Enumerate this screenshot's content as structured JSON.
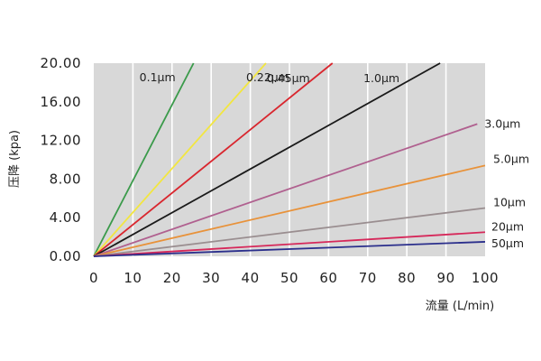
{
  "chart_data": {
    "type": "line",
    "title": "",
    "xlabel": "流量 (L/min)",
    "ylabel": "压降 (kpa)",
    "xlim": [
      0,
      100
    ],
    "ylim": [
      0,
      20
    ],
    "x_ticks": [
      "0",
      "10",
      "20",
      "30",
      "40",
      "50",
      "60",
      "70",
      "80",
      "90",
      "100"
    ],
    "y_ticks": [
      "0.00",
      "4.00",
      "8.00",
      "12.00",
      "16.00",
      "20.00"
    ],
    "grid": "vertical",
    "background": "#d8d8d8",
    "series": [
      {
        "name": "0.1μm",
        "color": "#3a9a4a",
        "x": [
          0,
          25.5
        ],
        "y": [
          0,
          20.0
        ]
      },
      {
        "name": "0.22μm",
        "color": "#f2e640",
        "x": [
          0,
          44.0
        ],
        "y": [
          0,
          20.0
        ]
      },
      {
        "name": "0.45μm",
        "color": "#d9262e",
        "x": [
          0,
          61.0
        ],
        "y": [
          0,
          20.0
        ]
      },
      {
        "name": "1.0μm",
        "color": "#1a1a1a",
        "x": [
          0,
          88.5
        ],
        "y": [
          0,
          20.0
        ]
      },
      {
        "name": "3.0μm",
        "color": "#b0608f",
        "x": [
          0,
          98.0
        ],
        "y": [
          0,
          13.7
        ]
      },
      {
        "name": "5.0μm",
        "color": "#e8923a",
        "x": [
          0,
          100.0
        ],
        "y": [
          0,
          9.4
        ]
      },
      {
        "name": "10μm",
        "color": "#9a8e90",
        "x": [
          0,
          100.0
        ],
        "y": [
          0,
          5.0
        ]
      },
      {
        "name": "20μm",
        "color": "#d6285a",
        "x": [
          0,
          100.0
        ],
        "y": [
          0,
          2.5
        ]
      },
      {
        "name": "50μm",
        "color": "#2b2f8c",
        "x": [
          0,
          100.0
        ],
        "y": [
          0,
          1.5
        ]
      }
    ]
  }
}
